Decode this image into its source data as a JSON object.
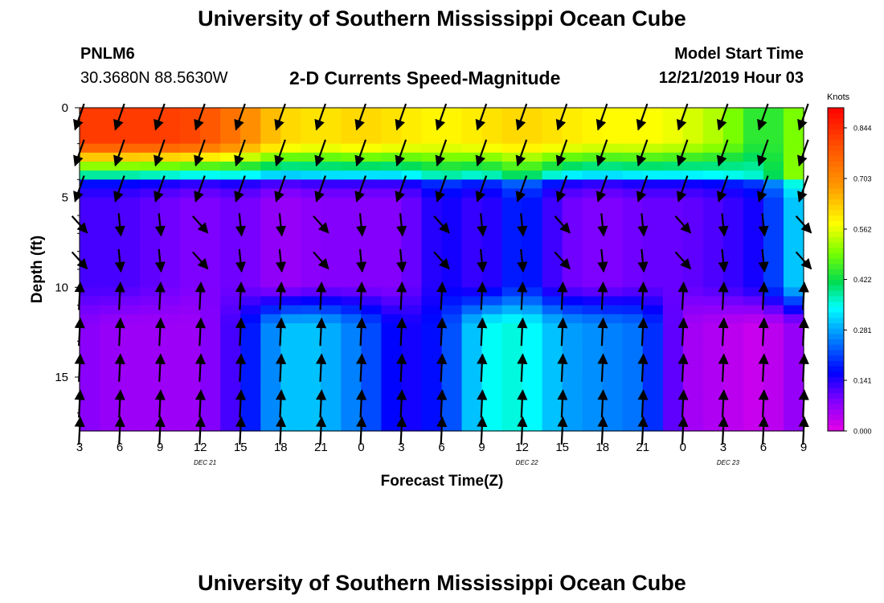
{
  "header": {
    "title_top": "University of Southern Mississippi Ocean Cube",
    "station_id": "PNLM6",
    "coordinates": "30.3680N 88.5630W",
    "subtitle": "2-D Currents Speed-Magnitude",
    "model_start_label": "Model Start Time",
    "model_start_value": "12/21/2019 Hour 03",
    "title_bottom": "University of Southern Mississippi Ocean Cube"
  },
  "chart_data": {
    "type": "heatmap",
    "title": "2-D Currents Speed-Magnitude",
    "xlabel": "Forecast Time(Z)",
    "ylabel": "Depth (ft)",
    "x_ticks": [
      "3",
      "6",
      "9",
      "12",
      "15",
      "18",
      "21",
      "0",
      "3",
      "6",
      "9",
      "12",
      "15",
      "18",
      "21",
      "0",
      "3",
      "6",
      "9"
    ],
    "date_labels": [
      {
        "text": "DEC 21",
        "tick_index": 3
      },
      {
        "text": "DEC 22",
        "tick_index": 11
      },
      {
        "text": "DEC 23",
        "tick_index": 16
      }
    ],
    "y_ticks": [
      0,
      5,
      10,
      15
    ],
    "ylim": [
      0,
      18
    ],
    "colorbar": {
      "title": "Knots",
      "ticks": [
        "0.844",
        "0.703",
        "0.562",
        "0.422",
        "0.281",
        "0.141",
        "0.000"
      ],
      "range": [
        0,
        0.9
      ]
    },
    "speed_profile": {
      "depths_ft": [
        0,
        2,
        4,
        6,
        8,
        10,
        12,
        14,
        16,
        18
      ],
      "note": "approximate speed (knots) at each forecast-hour column, surface to bottom",
      "surface_knots": [
        0.82,
        0.82,
        0.82,
        0.8,
        0.72,
        0.62,
        0.6,
        0.62,
        0.6,
        0.58,
        0.6,
        0.62,
        0.6,
        0.58,
        0.58,
        0.56,
        0.52,
        0.42,
        0.52
      ],
      "mid_knots": [
        0.12,
        0.12,
        0.1,
        0.08,
        0.1,
        0.06,
        0.08,
        0.08,
        0.08,
        0.16,
        0.12,
        0.2,
        0.1,
        0.08,
        0.1,
        0.1,
        0.12,
        0.16,
        0.35
      ],
      "bottom_knots": [
        0.08,
        0.06,
        0.06,
        0.06,
        0.14,
        0.3,
        0.3,
        0.24,
        0.14,
        0.18,
        0.34,
        0.36,
        0.28,
        0.26,
        0.24,
        0.06,
        0.04,
        0.02,
        0.08
      ]
    }
  }
}
